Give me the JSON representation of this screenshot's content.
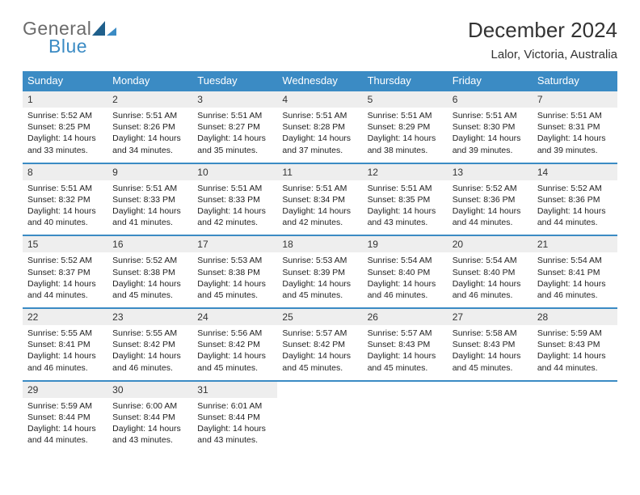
{
  "logo": {
    "word1": "General",
    "word2": "Blue"
  },
  "title": "December 2024",
  "subtitle": "Lalor, Victoria, Australia",
  "colors": {
    "header_bg": "#3b8bc4",
    "daynum_bg": "#eeeeee",
    "rule": "#3b8bc4",
    "text": "#222222",
    "logo_gray": "#6b6b6b",
    "logo_blue": "#3b8bc4"
  },
  "day_headers": [
    "Sunday",
    "Monday",
    "Tuesday",
    "Wednesday",
    "Thursday",
    "Friday",
    "Saturday"
  ],
  "weeks": [
    [
      {
        "n": "1",
        "sr": "5:52 AM",
        "ss": "8:25 PM",
        "dh": "14",
        "dm": "33"
      },
      {
        "n": "2",
        "sr": "5:51 AM",
        "ss": "8:26 PM",
        "dh": "14",
        "dm": "34"
      },
      {
        "n": "3",
        "sr": "5:51 AM",
        "ss": "8:27 PM",
        "dh": "14",
        "dm": "35"
      },
      {
        "n": "4",
        "sr": "5:51 AM",
        "ss": "8:28 PM",
        "dh": "14",
        "dm": "37"
      },
      {
        "n": "5",
        "sr": "5:51 AM",
        "ss": "8:29 PM",
        "dh": "14",
        "dm": "38"
      },
      {
        "n": "6",
        "sr": "5:51 AM",
        "ss": "8:30 PM",
        "dh": "14",
        "dm": "39"
      },
      {
        "n": "7",
        "sr": "5:51 AM",
        "ss": "8:31 PM",
        "dh": "14",
        "dm": "39"
      }
    ],
    [
      {
        "n": "8",
        "sr": "5:51 AM",
        "ss": "8:32 PM",
        "dh": "14",
        "dm": "40"
      },
      {
        "n": "9",
        "sr": "5:51 AM",
        "ss": "8:33 PM",
        "dh": "14",
        "dm": "41"
      },
      {
        "n": "10",
        "sr": "5:51 AM",
        "ss": "8:33 PM",
        "dh": "14",
        "dm": "42"
      },
      {
        "n": "11",
        "sr": "5:51 AM",
        "ss": "8:34 PM",
        "dh": "14",
        "dm": "42"
      },
      {
        "n": "12",
        "sr": "5:51 AM",
        "ss": "8:35 PM",
        "dh": "14",
        "dm": "43"
      },
      {
        "n": "13",
        "sr": "5:52 AM",
        "ss": "8:36 PM",
        "dh": "14",
        "dm": "44"
      },
      {
        "n": "14",
        "sr": "5:52 AM",
        "ss": "8:36 PM",
        "dh": "14",
        "dm": "44"
      }
    ],
    [
      {
        "n": "15",
        "sr": "5:52 AM",
        "ss": "8:37 PM",
        "dh": "14",
        "dm": "44"
      },
      {
        "n": "16",
        "sr": "5:52 AM",
        "ss": "8:38 PM",
        "dh": "14",
        "dm": "45"
      },
      {
        "n": "17",
        "sr": "5:53 AM",
        "ss": "8:38 PM",
        "dh": "14",
        "dm": "45"
      },
      {
        "n": "18",
        "sr": "5:53 AM",
        "ss": "8:39 PM",
        "dh": "14",
        "dm": "45"
      },
      {
        "n": "19",
        "sr": "5:54 AM",
        "ss": "8:40 PM",
        "dh": "14",
        "dm": "46"
      },
      {
        "n": "20",
        "sr": "5:54 AM",
        "ss": "8:40 PM",
        "dh": "14",
        "dm": "46"
      },
      {
        "n": "21",
        "sr": "5:54 AM",
        "ss": "8:41 PM",
        "dh": "14",
        "dm": "46"
      }
    ],
    [
      {
        "n": "22",
        "sr": "5:55 AM",
        "ss": "8:41 PM",
        "dh": "14",
        "dm": "46"
      },
      {
        "n": "23",
        "sr": "5:55 AM",
        "ss": "8:42 PM",
        "dh": "14",
        "dm": "46"
      },
      {
        "n": "24",
        "sr": "5:56 AM",
        "ss": "8:42 PM",
        "dh": "14",
        "dm": "45"
      },
      {
        "n": "25",
        "sr": "5:57 AM",
        "ss": "8:42 PM",
        "dh": "14",
        "dm": "45"
      },
      {
        "n": "26",
        "sr": "5:57 AM",
        "ss": "8:43 PM",
        "dh": "14",
        "dm": "45"
      },
      {
        "n": "27",
        "sr": "5:58 AM",
        "ss": "8:43 PM",
        "dh": "14",
        "dm": "45"
      },
      {
        "n": "28",
        "sr": "5:59 AM",
        "ss": "8:43 PM",
        "dh": "14",
        "dm": "44"
      }
    ],
    [
      {
        "n": "29",
        "sr": "5:59 AM",
        "ss": "8:44 PM",
        "dh": "14",
        "dm": "44"
      },
      {
        "n": "30",
        "sr": "6:00 AM",
        "ss": "8:44 PM",
        "dh": "14",
        "dm": "43"
      },
      {
        "n": "31",
        "sr": "6:01 AM",
        "ss": "8:44 PM",
        "dh": "14",
        "dm": "43"
      },
      null,
      null,
      null,
      null
    ]
  ]
}
